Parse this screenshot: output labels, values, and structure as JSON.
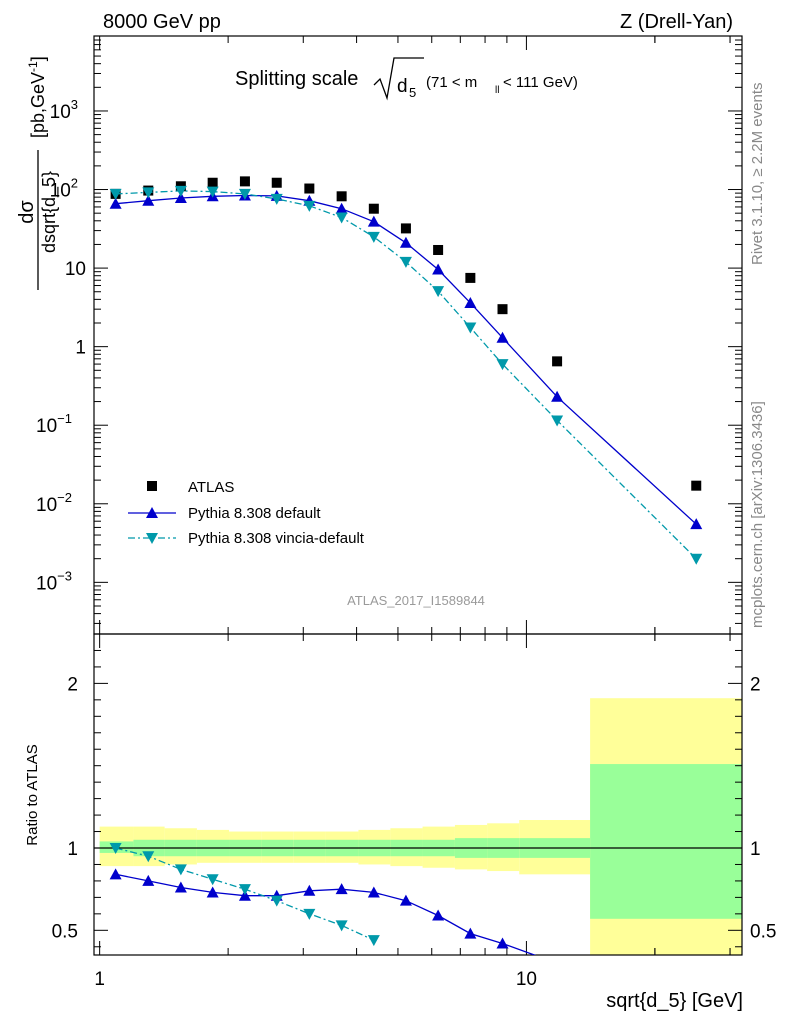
{
  "header": {
    "left": "8000 GeV pp",
    "right": "Z (Drell-Yan)"
  },
  "side_labels": {
    "rivet": "Rivet 3.1.10, ≥ 2.2M events",
    "mcplots": "mcplots.cern.ch [arXiv:1306.3436]"
  },
  "watermark": "ATLAS_2017_I1589844",
  "colors": {
    "data": "#000000",
    "default": "#0000cc",
    "vincia": "#0099aa",
    "band_inner": "#99ff99",
    "band_outer": "#ffff99"
  },
  "chart_data": [
    {
      "type": "scatter",
      "title": "Splitting scale √d5 (71 < mll < 111 GeV)",
      "title_parts": {
        "main": "Splitting scale",
        "var": "d",
        "var_sub": "5",
        "range_pre": "(71 < m",
        "range_sub": "ll",
        "range_post": " < 111 GeV)"
      },
      "ylabel": {
        "num": "dσ",
        "den": "dsqrt{d_5}",
        "unit": "[pb,GeV",
        "unit_sup": "-1",
        "unit_end": "]"
      },
      "xscale": "log",
      "yscale": "log",
      "xlim": [
        0.97,
        32.0
      ],
      "ylim": [
        0.00022,
        9000
      ],
      "yticks": [
        {
          "v": 0.001,
          "base": "10",
          "exp": "−3"
        },
        {
          "v": 0.01,
          "base": "10",
          "exp": "−2"
        },
        {
          "v": 0.1,
          "base": "10",
          "exp": "−1"
        },
        {
          "v": 1,
          "base": "1",
          "exp": ""
        },
        {
          "v": 10,
          "base": "10",
          "exp": ""
        },
        {
          "v": 100,
          "base": "10",
          "exp": "2"
        },
        {
          "v": 1000,
          "base": "10",
          "exp": "3"
        }
      ],
      "legend_position": "lower-left",
      "series": [
        {
          "name": "ATLAS",
          "marker": "square",
          "x": [
            1.09,
            1.3,
            1.55,
            1.84,
            2.19,
            2.6,
            3.1,
            3.69,
            4.39,
            5.22,
            6.21,
            7.39,
            8.79,
            11.8,
            25.0
          ],
          "y": [
            88,
            97,
            110,
            122,
            127,
            122,
            103,
            82,
            57,
            32,
            17,
            7.5,
            3.0,
            0.65,
            0.017
          ]
        },
        {
          "name": "Pythia 8.308 default",
          "marker": "triangle-up",
          "line": "solid",
          "x": [
            1.09,
            1.3,
            1.55,
            1.84,
            2.19,
            2.6,
            3.1,
            3.69,
            4.39,
            5.22,
            6.21,
            7.39,
            8.79,
            11.8,
            25.0
          ],
          "y": [
            66,
            72,
            78,
            82,
            84,
            83,
            72,
            57,
            39,
            21,
            9.6,
            3.6,
            1.3,
            0.23,
            0.0055
          ]
        },
        {
          "name": "Pythia 8.308 vincia-default",
          "marker": "triangle-down",
          "line": "dashdot",
          "x": [
            1.09,
            1.3,
            1.55,
            1.84,
            2.19,
            2.6,
            3.1,
            3.69,
            4.39,
            5.22,
            6.21,
            7.39,
            8.79,
            11.8,
            25.0
          ],
          "y": [
            88,
            92,
            96,
            94,
            88,
            76,
            62,
            44,
            25,
            12,
            5.1,
            1.75,
            0.6,
            0.115,
            0.002
          ]
        }
      ]
    },
    {
      "type": "scatter",
      "title": "",
      "xlabel": "sqrt{d_5} [GeV]",
      "ylabel": "Ratio to ATLAS",
      "xscale": "log",
      "xlim": [
        0.97,
        32.0
      ],
      "ylim": [
        0.35,
        2.3
      ],
      "xticks": [
        {
          "v": 1,
          "label": "1"
        },
        {
          "v": 10,
          "label": "10"
        }
      ],
      "yticks": [
        {
          "v": 0.5,
          "label": "0.5"
        },
        {
          "v": 1,
          "label": "1"
        },
        {
          "v": 2,
          "label": "2"
        }
      ],
      "bands": {
        "edges": [
          1.0,
          1.2,
          1.42,
          1.69,
          2.01,
          2.39,
          2.85,
          3.39,
          4.04,
          4.8,
          5.71,
          6.8,
          8.09,
          9.62,
          14.1,
          32.0
        ],
        "inner_lo": [
          0.97,
          0.95,
          0.95,
          0.95,
          0.95,
          0.95,
          0.95,
          0.95,
          0.95,
          0.95,
          0.95,
          0.94,
          0.94,
          0.94,
          0.57
        ],
        "inner_hi": [
          1.04,
          1.05,
          1.05,
          1.05,
          1.05,
          1.05,
          1.05,
          1.05,
          1.05,
          1.05,
          1.05,
          1.06,
          1.06,
          1.06,
          1.51
        ],
        "outer_lo": [
          0.89,
          0.89,
          0.9,
          0.91,
          0.91,
          0.91,
          0.91,
          0.91,
          0.9,
          0.89,
          0.88,
          0.87,
          0.86,
          0.84,
          0.35
        ],
        "outer_hi": [
          1.13,
          1.13,
          1.12,
          1.11,
          1.1,
          1.1,
          1.1,
          1.1,
          1.11,
          1.12,
          1.13,
          1.14,
          1.15,
          1.17,
          1.91
        ]
      },
      "series": [
        {
          "name": "Pythia 8.308 default",
          "marker": "triangle-up",
          "line": "solid",
          "x": [
            1.09,
            1.3,
            1.55,
            1.84,
            2.19,
            2.6,
            3.1,
            3.69,
            4.39,
            5.22,
            6.21,
            7.39,
            8.79,
            11.8
          ],
          "y": [
            0.84,
            0.8,
            0.76,
            0.73,
            0.71,
            0.71,
            0.74,
            0.75,
            0.73,
            0.68,
            0.59,
            0.48,
            0.42,
            0.3
          ]
        },
        {
          "name": "Pythia 8.308 vincia-default",
          "marker": "triangle-down",
          "line": "dashdot",
          "x": [
            1.09,
            1.3,
            1.55,
            1.84,
            2.19,
            2.6,
            3.1,
            3.69,
            4.39
          ],
          "y": [
            1.0,
            0.95,
            0.87,
            0.81,
            0.75,
            0.68,
            0.6,
            0.53,
            0.44
          ]
        }
      ]
    }
  ]
}
